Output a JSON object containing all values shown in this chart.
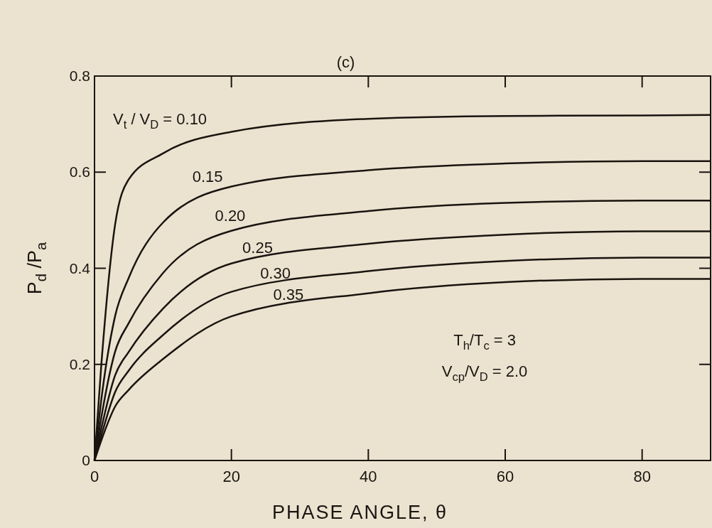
{
  "chart_data": {
    "type": "line",
    "title": "(c)",
    "xlabel": "PHASE ANGLE, θ",
    "ylabel": "P$_{d}$ /P$_{a}$",
    "x": [
      0,
      1,
      3,
      5,
      10,
      20,
      40,
      60,
      80,
      90
    ],
    "xlim": [
      0,
      90
    ],
    "xticks": [
      0,
      20,
      40,
      60,
      80
    ],
    "ylim": [
      0,
      0.8
    ],
    "yticks": [
      0,
      {
        "value": 0.2,
        "label": "0.2"
      },
      {
        "value": 0.4,
        "label": "0.4"
      },
      {
        "value": 0.6,
        "label": "0.6"
      },
      {
        "value": 0.8,
        "label": "0.8"
      }
    ],
    "grid": false,
    "marker": "none",
    "line_style": "solid",
    "series": [
      {
        "name": "V$_{t}$ / V$_{D}$ = 0.10",
        "color": "#1a1410",
        "values": [
          0,
          0.2,
          0.49,
          0.585,
          0.639,
          0.684,
          0.711,
          0.717,
          0.718,
          0.719
        ]
      },
      {
        "name": "0.15",
        "color": "#1a1410",
        "values": [
          0,
          0.127,
          0.3,
          0.38,
          0.495,
          0.57,
          0.604,
          0.618,
          0.623,
          0.623
        ]
      },
      {
        "name": "0.20",
        "color": "#1a1410",
        "values": [
          0,
          0.09,
          0.226,
          0.286,
          0.39,
          0.478,
          0.519,
          0.536,
          0.541,
          0.541
        ]
      },
      {
        "name": "0.25",
        "color": "#1a1410",
        "values": [
          0,
          0.067,
          0.177,
          0.226,
          0.316,
          0.41,
          0.451,
          0.47,
          0.477,
          0.477
        ]
      },
      {
        "name": "0.30",
        "color": "#1a1410",
        "values": [
          0,
          0.052,
          0.142,
          0.187,
          0.261,
          0.351,
          0.394,
          0.415,
          0.422,
          0.422
        ]
      },
      {
        "name": "0.35",
        "color": "#1a1410",
        "values": [
          0,
          0.042,
          0.112,
          0.147,
          0.211,
          0.3,
          0.348,
          0.371,
          0.378,
          0.378
        ]
      }
    ],
    "annotations": [
      "T$_{h}$/T$_{c}$ = 3",
      "V$_{cp}$/V$_{D}$ = 2.0"
    ]
  }
}
